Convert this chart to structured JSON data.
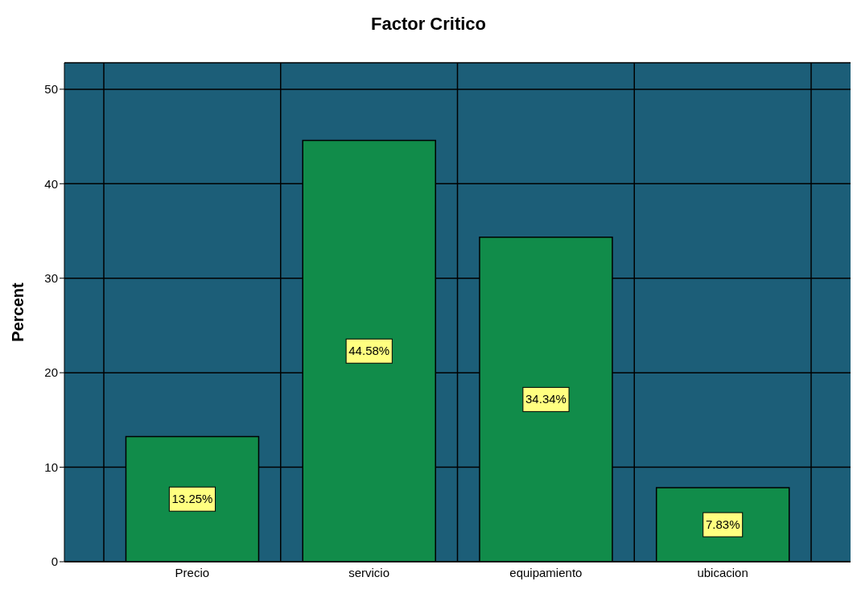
{
  "chart_data": {
    "type": "bar",
    "title": "Factor Critico",
    "ylabel": "Percent",
    "categories": [
      "Precio",
      "servicio",
      "equipamiento",
      "ubicacion"
    ],
    "values": [
      13.25,
      44.58,
      34.34,
      7.83
    ],
    "value_labels": [
      "13.25%",
      "44.58%",
      "34.34%",
      "7.83%"
    ],
    "color": "#118c4a",
    "ylim": [
      0,
      52.8
    ],
    "yticks": [
      0,
      10,
      20,
      30,
      40,
      50
    ],
    "grid": true
  }
}
